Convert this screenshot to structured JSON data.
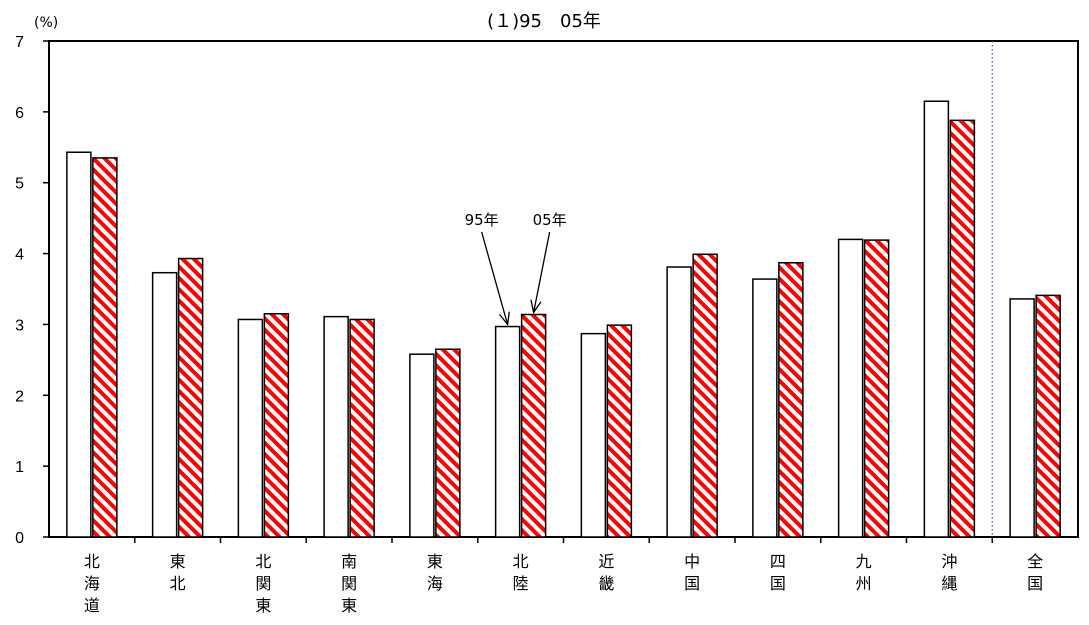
{
  "chart_data": {
    "type": "bar",
    "title": "(１)95　05年",
    "ylabel": "(%)",
    "ylim": [
      0,
      7
    ],
    "yticks": [
      "0",
      "1",
      "2",
      "3",
      "4",
      "5",
      "6",
      "7"
    ],
    "categories": [
      "北海道",
      "東北",
      "北関東",
      "南関東",
      "東海",
      "北陸",
      "近畿",
      "中国",
      "四国",
      "九州",
      "沖縄",
      "全国"
    ],
    "series": [
      {
        "values": [
          5.43,
          3.73,
          3.07,
          3.11,
          2.58,
          2.97,
          2.87,
          3.81,
          3.64,
          4.2,
          6.15,
          3.36
        ],
        "fill": "#ffffff",
        "stroke": "#000000"
      },
      {
        "values": [
          5.35,
          3.93,
          3.15,
          3.07,
          2.65,
          3.14,
          2.99,
          3.99,
          3.87,
          4.19,
          5.88,
          3.41
        ],
        "fill": "hatched",
        "hatch_color": "#ff0000",
        "stroke": "#000000"
      }
    ],
    "annotations": [
      {
        "text": "95年",
        "category": "北陸",
        "series": 0
      },
      {
        "text": "05年",
        "category": "北陸",
        "series": 1
      }
    ],
    "separator_before": "全国",
    "grid": false,
    "legend": "none"
  }
}
